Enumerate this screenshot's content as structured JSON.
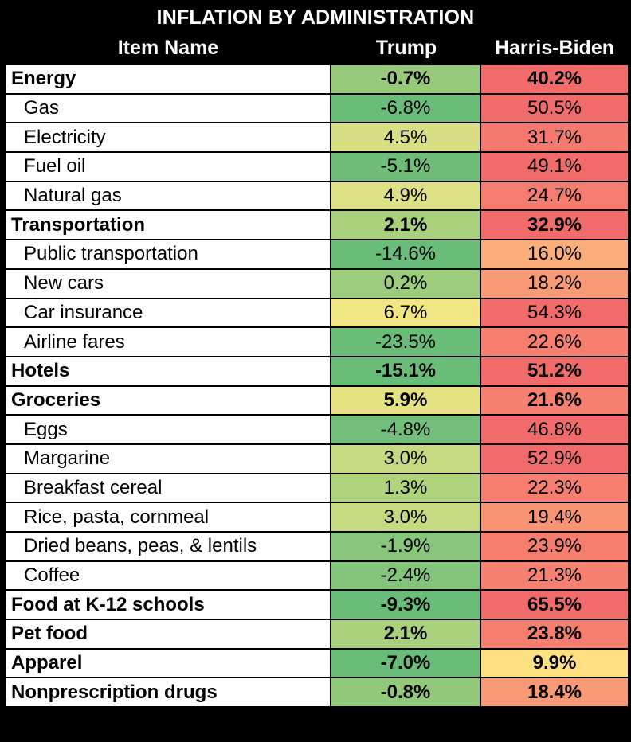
{
  "chart_data": {
    "type": "table",
    "title": "INFLATION BY ADMINISTRATION",
    "columns": [
      "Item Name",
      "Trump",
      "Harris-Biden"
    ],
    "rows": [
      {
        "name": "Energy",
        "level": "category",
        "trump": "-0.7%",
        "harris_biden": "40.2%",
        "trump_color": "#96c97a",
        "harris_color": "#f26b6b"
      },
      {
        "name": "Gas",
        "level": "item",
        "trump": "-6.8%",
        "harris_biden": "50.5%",
        "trump_color": "#6abd79",
        "harris_color": "#f26b6b"
      },
      {
        "name": "Electricity",
        "level": "item",
        "trump": "4.5%",
        "harris_biden": "31.7%",
        "trump_color": "#d8df85",
        "harris_color": "#f47a6f"
      },
      {
        "name": "Fuel oil",
        "level": "item",
        "trump": "-5.1%",
        "harris_biden": "49.1%",
        "trump_color": "#6fbd79",
        "harris_color": "#f26b6b"
      },
      {
        "name": "Natural gas",
        "level": "item",
        "trump": "4.9%",
        "harris_biden": "24.7%",
        "trump_color": "#dde084",
        "harris_color": "#f57d6f"
      },
      {
        "name": "Transportation",
        "level": "category",
        "trump": "2.1%",
        "harris_biden": "32.9%",
        "trump_color": "#a9d17d",
        "harris_color": "#f26b6b"
      },
      {
        "name": "Public transportation",
        "level": "item",
        "trump": "-14.6%",
        "harris_biden": "16.0%",
        "trump_color": "#6abd79",
        "harris_color": "#fbad7a"
      },
      {
        "name": "New cars",
        "level": "item",
        "trump": "0.2%",
        "harris_biden": "18.2%",
        "trump_color": "#9dcd7c",
        "harris_color": "#f89a76"
      },
      {
        "name": "Car insurance",
        "level": "item",
        "trump": "6.7%",
        "harris_biden": "54.3%",
        "trump_color": "#f2e684",
        "harris_color": "#f26b6b"
      },
      {
        "name": "Airline fares",
        "level": "item",
        "trump": "-23.5%",
        "harris_biden": "22.6%",
        "trump_color": "#6abd79",
        "harris_color": "#f67f70"
      },
      {
        "name": "Hotels",
        "level": "category",
        "trump": "-15.1%",
        "harris_biden": "51.2%",
        "trump_color": "#6abd79",
        "harris_color": "#f26b6b"
      },
      {
        "name": "Groceries",
        "level": "category",
        "trump": "5.9%",
        "harris_biden": "21.6%",
        "trump_color": "#e5e283",
        "harris_color": "#f68171"
      },
      {
        "name": "Eggs",
        "level": "item",
        "trump": "-4.8%",
        "harris_biden": "46.8%",
        "trump_color": "#72be7a",
        "harris_color": "#f26b6b"
      },
      {
        "name": "Margarine",
        "level": "item",
        "trump": "3.0%",
        "harris_biden": "52.9%",
        "trump_color": "#c4d980",
        "harris_color": "#f26b6b"
      },
      {
        "name": "Breakfast cereal",
        "level": "item",
        "trump": "1.3%",
        "harris_biden": "22.3%",
        "trump_color": "#b0d37e",
        "harris_color": "#f67f70"
      },
      {
        "name": "Rice, pasta, cornmeal",
        "level": "item",
        "trump": "3.0%",
        "harris_biden": "19.4%",
        "trump_color": "#c4d980",
        "harris_color": "#f89474"
      },
      {
        "name": "Dried beans, peas, & lentils",
        "level": "item",
        "trump": "-1.9%",
        "harris_biden": "23.9%",
        "trump_color": "#88c67b",
        "harris_color": "#f67e6f"
      },
      {
        "name": "Coffee",
        "level": "item",
        "trump": "-2.4%",
        "harris_biden": "21.3%",
        "trump_color": "#83c47b",
        "harris_color": "#f68171"
      },
      {
        "name": "Food at K-12 schools",
        "level": "category",
        "trump": "-9.3%",
        "harris_biden": "65.5%",
        "trump_color": "#6abd79",
        "harris_color": "#f26b6b"
      },
      {
        "name": "Pet food",
        "level": "category",
        "trump": "2.1%",
        "harris_biden": "23.8%",
        "trump_color": "#a9d17d",
        "harris_color": "#f67e6f"
      },
      {
        "name": "Apparel",
        "level": "category",
        "trump": "-7.0%",
        "harris_biden": "9.9%",
        "trump_color": "#6abd79",
        "harris_color": "#fde180"
      },
      {
        "name": "Nonprescription drugs",
        "level": "category",
        "trump": "-0.8%",
        "harris_biden": "18.4%",
        "trump_color": "#93c97b",
        "harris_color": "#f89a76"
      }
    ]
  }
}
